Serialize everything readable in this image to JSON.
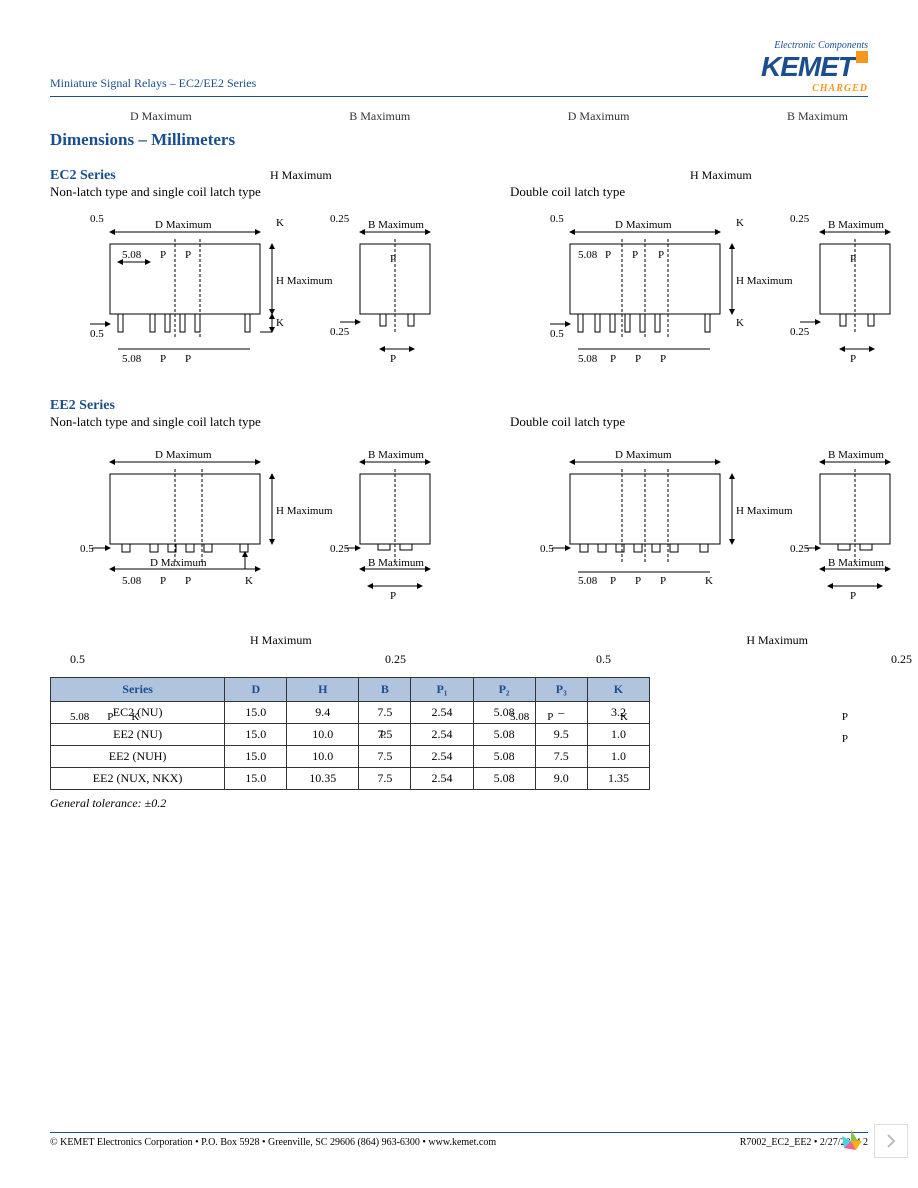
{
  "header": {
    "breadcrumb": "Miniature Signal Relays – EC2/EE2 Series",
    "logo_tag": "Electronic Components",
    "logo_text": "KEMET",
    "logo_charged": "CHARGED"
  },
  "ghost_top": {
    "d1": "D Maximum",
    "b1": "B Maximum",
    "d2": "D Maximum",
    "b2": "B Maximum"
  },
  "section_title": "Dimensions – Millimeters",
  "ec2": {
    "series_title": "EC2 Series",
    "h_ghost": "H Maximum",
    "left": {
      "label": "Non-latch type and single coil latch type",
      "dim": {
        "d": "D Maximum",
        "b": "B Maximum",
        "h": "H Maximum",
        "k": "K",
        "v05": "0.5",
        "v508": "5.08",
        "v025": "0.25",
        "p1": "P",
        "p2": "P",
        "p3": "P"
      }
    },
    "right": {
      "label": "Double coil latch type",
      "dim": {
        "d": "D Maximum",
        "b": "B Maximum",
        "h": "H Maximum",
        "k": "K",
        "v05": "0.5",
        "v508": "5.08",
        "v025": "0.25",
        "p1": "P",
        "p2": "P",
        "p3": "P"
      }
    }
  },
  "ee2": {
    "series_title": "EE2 Series",
    "h_ghost": "H Maximum",
    "left": {
      "label": "Non-latch type and single coil latch type",
      "dim": {
        "d": "D Maximum",
        "b": "B Maximum",
        "h": "H Maximum",
        "k": "K",
        "v05": "0.5",
        "v508": "5.08",
        "v025": "0.25",
        "p1": "P",
        "p2": "P",
        "p3": "P"
      }
    },
    "right": {
      "label": "Double coil latch type",
      "dim": {
        "d": "D Maximum",
        "b": "B Maximum",
        "h": "H Maximum",
        "k": "K",
        "v05": "0.5",
        "v508": "5.08",
        "v025": "0.25",
        "p1": "P",
        "p2": "P",
        "p3": "P"
      }
    }
  },
  "ghost_mid": {
    "h1": "H Maximum",
    "h2": "H Maximum",
    "v05a": "0.5",
    "v025a": "0.25",
    "v05b": "0.5",
    "v025b": "0.25",
    "d1": "D Maximum",
    "d2": "B Maximum",
    "p508": "5.08",
    "pP": "P",
    "pK": "K",
    "pP2": "P",
    "pP3": "P",
    "r508": "5.08",
    "rP": "P",
    "rK": "K",
    "rP2": "P",
    "rP3": "P"
  },
  "table": {
    "headers": [
      "Series",
      "D",
      "H",
      "B",
      "P₁",
      "P₂",
      "P₃",
      "K"
    ],
    "rows": [
      [
        "EC2 (NU)",
        "15.0",
        "9.4",
        "7.5",
        "2.54",
        "5.08",
        "–",
        "3.2"
      ],
      [
        "EE2 (NU)",
        "15.0",
        "10.0",
        "7.5",
        "2.54",
        "5.08",
        "9.5",
        "1.0"
      ],
      [
        "EE2 (NUH)",
        "15.0",
        "10.0",
        "7.5",
        "2.54",
        "5.08",
        "7.5",
        "1.0"
      ],
      [
        "EE2 (NUX, NKX)",
        "15.0",
        "10.35",
        "7.5",
        "2.54",
        "5.08",
        "9.0",
        "1.35"
      ]
    ],
    "overlay": {
      "a508": "5.08",
      "aP": "P",
      "aK": "K",
      "aP2": "P",
      "aP3": "P",
      "b508": "5.08",
      "bP": "P",
      "bK": "K",
      "bP2": "P",
      "bP3": "P"
    }
  },
  "tolerance": "General tolerance: ±0.2",
  "footer": {
    "left": "© KEMET Electronics Corporation • P.O. Box 5928 • Greenville, SC 29606 (864) 963-6300 • www.kemet.com",
    "right": "R7002_EC2_EE2 • 2/27/2014     2"
  },
  "diagram_style": {
    "stroke": "#000000",
    "stroke_width": 1,
    "dash": "3,2",
    "arrow_fill": "#000000",
    "font_size": 11
  }
}
